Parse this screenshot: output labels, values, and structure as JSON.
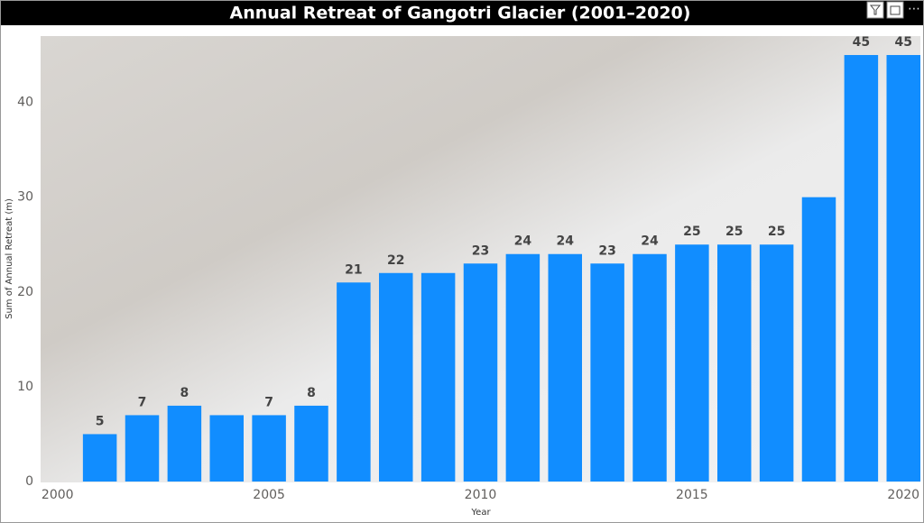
{
  "chart_data": {
    "type": "bar",
    "title": "Annual Retreat of Gangotri Glacier (2001–2020)",
    "x_label": "Year",
    "y_label": "Sum of Annual Retreat (m)",
    "x": [
      2001,
      2002,
      2003,
      2004,
      2005,
      2006,
      2007,
      2008,
      2009,
      2010,
      2011,
      2012,
      2013,
      2014,
      2015,
      2016,
      2017,
      2018,
      2019,
      2020
    ],
    "values": [
      5,
      7,
      8,
      7,
      7,
      8,
      21,
      22,
      22,
      23,
      24,
      24,
      23,
      24,
      25,
      25,
      25,
      30,
      45,
      45
    ],
    "value_labels": [
      5,
      7,
      8,
      null,
      7,
      8,
      21,
      22,
      null,
      23,
      24,
      24,
      23,
      24,
      25,
      25,
      25,
      null,
      45,
      45
    ],
    "color": "#118dff",
    "xlim": [
      1999.6,
      2020.4
    ],
    "xticks": [
      2000,
      2005,
      2010,
      2015,
      2020
    ],
    "ylim": [
      0,
      47
    ],
    "yticks": [
      0,
      10,
      20,
      30,
      40
    ],
    "grid": false
  }
}
